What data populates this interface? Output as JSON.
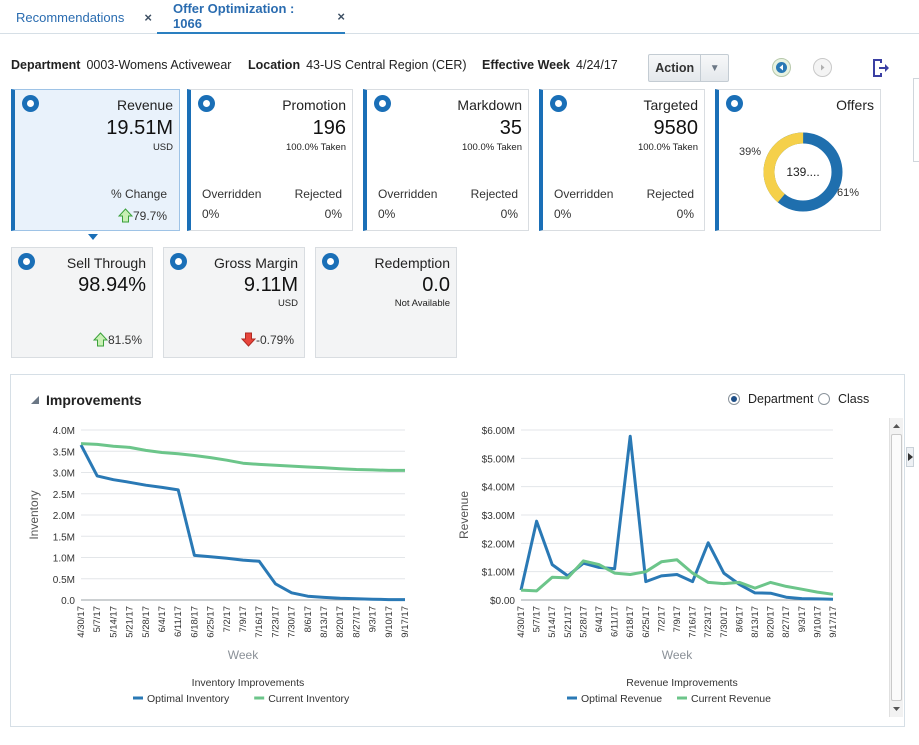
{
  "tabs": [
    {
      "label": "Recommendations",
      "close": "×"
    },
    {
      "label": "Offer Optimization : 1066",
      "close": "×"
    }
  ],
  "header": {
    "department_label": "Department",
    "department_value": "0003-Womens Activewear",
    "location_label": "Location",
    "location_value": "43-US Central Region (CER)",
    "week_label": "Effective Week",
    "week_value": "4/24/17",
    "action_label": "Action"
  },
  "tiles": {
    "revenue": {
      "title": "Revenue",
      "value": "19.51M",
      "unit": "USD",
      "change_label": "% Change",
      "change": "79.7%"
    },
    "promotion": {
      "title": "Promotion",
      "value": "196",
      "taken": "100.0% Taken",
      "overridden_label": "Overridden",
      "rejected_label": "Rejected",
      "overridden": "0%",
      "rejected": "0%"
    },
    "markdown": {
      "title": "Markdown",
      "value": "35",
      "taken": "100.0% Taken",
      "overridden_label": "Overridden",
      "rejected_label": "Rejected",
      "overridden": "0%",
      "rejected": "0%"
    },
    "targeted": {
      "title": "Targeted",
      "value": "9580",
      "taken": "100.0% Taken",
      "overridden_label": "Overridden",
      "rejected_label": "Rejected",
      "overridden": "0%",
      "rejected": "0%"
    },
    "offers": {
      "title": "Offers",
      "center": "139....",
      "left_pct": "39%",
      "right_pct": "61%",
      "share_yellow": 39,
      "share_blue": 61,
      "color_yellow": "#f5d04a",
      "color_blue": "#1f6fae"
    },
    "sell_through": {
      "title": "Sell Through",
      "value": "98.94%",
      "change": "81.5%"
    },
    "gross_margin": {
      "title": "Gross Margin",
      "value": "9.11M",
      "unit": "USD",
      "change": "-0.79%"
    },
    "redemption": {
      "title": "Redemption",
      "value": "0.0",
      "note": "Not Available"
    }
  },
  "improvements": {
    "title": "Improvements",
    "options": [
      {
        "label": "Department",
        "selected": true
      },
      {
        "label": "Class",
        "selected": false
      }
    ]
  },
  "colors": {
    "optimal": "#2a79b5",
    "current": "#6cc58a",
    "accent": "#1a6fb7"
  },
  "chart_data": [
    {
      "type": "line",
      "title": "Inventory Improvements",
      "xlabel": "Week",
      "ylabel": "Inventory",
      "ylim": [
        0,
        4
      ],
      "yticks": [
        "0.0",
        "0.5M",
        "1.0M",
        "1.5M",
        "2.0M",
        "2.5M",
        "3.0M",
        "3.5M",
        "4.0M"
      ],
      "categories": [
        "4/30/17",
        "5/7/17",
        "5/14/17",
        "5/21/17",
        "5/28/17",
        "6/4/17",
        "6/11/17",
        "6/18/17",
        "6/25/17",
        "7/2/17",
        "7/9/17",
        "7/16/17",
        "7/23/17",
        "7/30/17",
        "8/6/17",
        "8/13/17",
        "8/20/17",
        "8/27/17",
        "9/3/17",
        "9/10/17",
        "9/17/17"
      ],
      "series": [
        {
          "name": "Optimal Inventory",
          "values": [
            3.65,
            2.92,
            2.83,
            2.77,
            2.7,
            2.65,
            2.59,
            1.05,
            1.02,
            0.98,
            0.94,
            0.91,
            0.38,
            0.17,
            0.09,
            0.06,
            0.04,
            0.03,
            0.02,
            0.01,
            0.01
          ]
        },
        {
          "name": "Current Inventory",
          "values": [
            3.68,
            3.66,
            3.62,
            3.59,
            3.52,
            3.47,
            3.44,
            3.4,
            3.35,
            3.29,
            3.22,
            3.19,
            3.17,
            3.15,
            3.13,
            3.11,
            3.09,
            3.07,
            3.06,
            3.05,
            3.05
          ]
        }
      ]
    },
    {
      "type": "line",
      "title": "Revenue Improvements",
      "xlabel": "Week",
      "ylabel": "Revenue",
      "ylim": [
        0,
        6
      ],
      "yticks": [
        "$0.00",
        "$1.00M",
        "$2.00M",
        "$3.00M",
        "$4.00M",
        "$5.00M",
        "$6.00M"
      ],
      "categories": [
        "4/30/17",
        "5/7/17",
        "5/14/17",
        "5/21/17",
        "5/28/17",
        "6/4/17",
        "6/11/17",
        "6/18/17",
        "6/25/17",
        "7/2/17",
        "7/9/17",
        "7/16/17",
        "7/23/17",
        "7/30/17",
        "8/6/17",
        "8/13/17",
        "8/20/17",
        "8/27/17",
        "9/3/17",
        "9/10/17",
        "9/17/17"
      ],
      "series": [
        {
          "name": "Optimal Revenue",
          "values": [
            0.35,
            2.78,
            1.25,
            0.85,
            1.3,
            1.15,
            1.1,
            5.78,
            0.65,
            0.85,
            0.9,
            0.65,
            2.02,
            0.95,
            0.55,
            0.25,
            0.24,
            0.1,
            0.05,
            0.04,
            0.03
          ]
        },
        {
          "name": "Current Revenue",
          "values": [
            0.35,
            0.32,
            0.8,
            0.78,
            1.38,
            1.25,
            0.95,
            0.9,
            1.0,
            1.35,
            1.42,
            0.95,
            0.62,
            0.58,
            0.62,
            0.42,
            0.62,
            0.48,
            0.38,
            0.28,
            0.2
          ]
        }
      ]
    }
  ]
}
